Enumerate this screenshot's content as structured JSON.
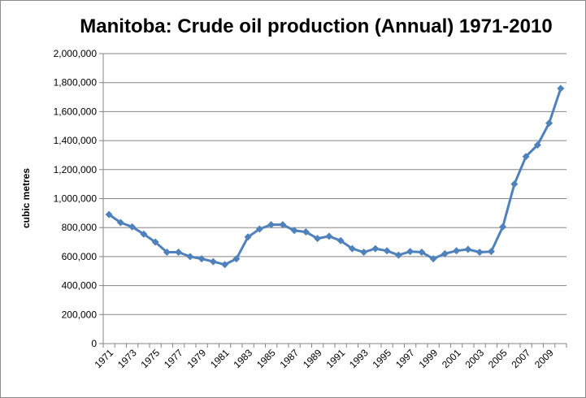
{
  "chart_data": {
    "type": "line",
    "title": "Manitoba: Crude oil production (Annual) 1971-2010",
    "xlabel": "",
    "ylabel": "cubic metres",
    "ylim": [
      0,
      2000000
    ],
    "y_ticks": [
      "0",
      "200,000",
      "400,000",
      "600,000",
      "800,000",
      "1,000,000",
      "1,200,000",
      "1,400,000",
      "1,600,000",
      "1,800,000",
      "2,000,000"
    ],
    "y_tick_values": [
      0,
      200000,
      400000,
      600000,
      800000,
      1000000,
      1200000,
      1400000,
      1600000,
      1800000,
      2000000
    ],
    "x_tick_labels": [
      "1971",
      "1973",
      "1975",
      "1977",
      "1979",
      "1981",
      "1983",
      "1985",
      "1987",
      "1989",
      "1991",
      "1993",
      "1995",
      "1997",
      "1999",
      "2001",
      "2003",
      "2005",
      "2007",
      "2009"
    ],
    "grid": "horizontal",
    "legend": "none",
    "series": [
      {
        "color": "#4f81bd",
        "marker": "diamond",
        "x": [
          1971,
          1972,
          1973,
          1974,
          1975,
          1976,
          1977,
          1978,
          1979,
          1980,
          1981,
          1982,
          1983,
          1984,
          1985,
          1986,
          1987,
          1988,
          1989,
          1990,
          1991,
          1992,
          1993,
          1994,
          1995,
          1996,
          1997,
          1998,
          1999,
          2000,
          2001,
          2002,
          2003,
          2004,
          2005,
          2006,
          2007,
          2008,
          2009,
          2010
        ],
        "values": [
          890000,
          835000,
          805000,
          755000,
          700000,
          630000,
          630000,
          600000,
          585000,
          565000,
          545000,
          585000,
          735000,
          790000,
          820000,
          820000,
          780000,
          770000,
          725000,
          740000,
          710000,
          655000,
          630000,
          655000,
          640000,
          610000,
          635000,
          630000,
          585000,
          620000,
          640000,
          650000,
          630000,
          635000,
          805000,
          1100000,
          1290000,
          1370000,
          1520000,
          1760000
        ]
      }
    ]
  }
}
